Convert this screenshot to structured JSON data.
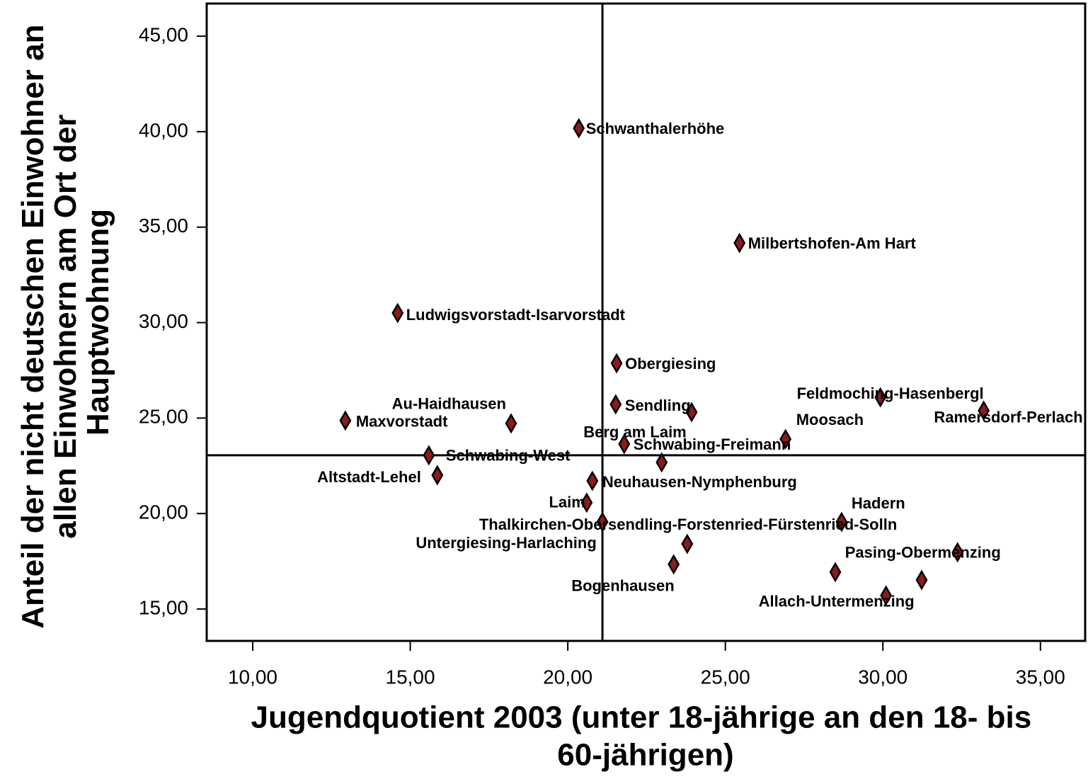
{
  "chart_data": {
    "type": "scatter",
    "x_label": "Jugendquotient 2003 (unter 18-jährige an den 18- bis 60-jährigen)",
    "y_label": "Anteil der nicht deutschen Einwohner an allen Einwohnern am Ort der Hauptwohnung",
    "xlim": [
      8.54,
      36.42
    ],
    "ylim": [
      13.33,
      46.71
    ],
    "xticks": [
      {
        "value": 10,
        "label": "10,00"
      },
      {
        "value": 15,
        "label": "15,00"
      },
      {
        "value": 20,
        "label": "20,00"
      },
      {
        "value": 25,
        "label": "25,00"
      },
      {
        "value": 30,
        "label": "30,00"
      },
      {
        "value": 35,
        "label": "35,00"
      }
    ],
    "yticks": [
      {
        "value": 15,
        "label": "15,00"
      },
      {
        "value": 20,
        "label": "20,00"
      },
      {
        "value": 25,
        "label": "25,00"
      },
      {
        "value": 30,
        "label": "30,00"
      },
      {
        "value": 35,
        "label": "35,00"
      },
      {
        "value": 40,
        "label": "40,00"
      },
      {
        "value": 45,
        "label": "45,00"
      }
    ],
    "reference_lines": [
      {
        "axis": "x",
        "value": 21.1
      },
      {
        "axis": "y",
        "value": 23.05
      }
    ],
    "color": "#8b1a1a",
    "labels": [
      "Maxvorstadt",
      "Au-Haidhausen",
      "Schwabing-West",
      "Altstadt-Lehel",
      "Ludwigsvorstadt-Isarvorstadt",
      "Schwanthalerhöhe",
      "Obergiesing",
      "Sendling",
      null,
      "Schwabing-Freimann",
      "Berg am Laim",
      "Neuhausen-Nymphenburg",
      "Laim",
      "Thalkirchen-Obersendling-Forstenried-Fürstenried-Solln",
      "Untergiesing-Harlaching",
      "Bogenhausen",
      "Milbertshofen-Am Hart",
      "Moosach",
      "Feldmoching-Hasenbergl",
      "Ramersdorf-Perlach",
      "Hadern",
      null,
      "Allach-Untermenzing",
      null,
      "Pasing-Obermenzing"
    ],
    "x": [
      12.94,
      18.2,
      15.59,
      15.86,
      14.6,
      20.35,
      21.55,
      21.52,
      23.93,
      21.79,
      22.98,
      20.78,
      20.6,
      21.1,
      23.79,
      23.36,
      25.45,
      26.91,
      29.92,
      33.2,
      28.69,
      28.49,
      30.1,
      31.23,
      32.37
    ],
    "y": [
      24.87,
      24.72,
      23.05,
      22.01,
      30.5,
      40.18,
      27.87,
      25.72,
      25.31,
      23.64,
      22.68,
      21.71,
      20.57,
      19.56,
      18.41,
      17.34,
      34.17,
      23.9,
      26.09,
      25.39,
      19.56,
      16.93,
      15.71,
      16.52,
      17.97
    ]
  }
}
